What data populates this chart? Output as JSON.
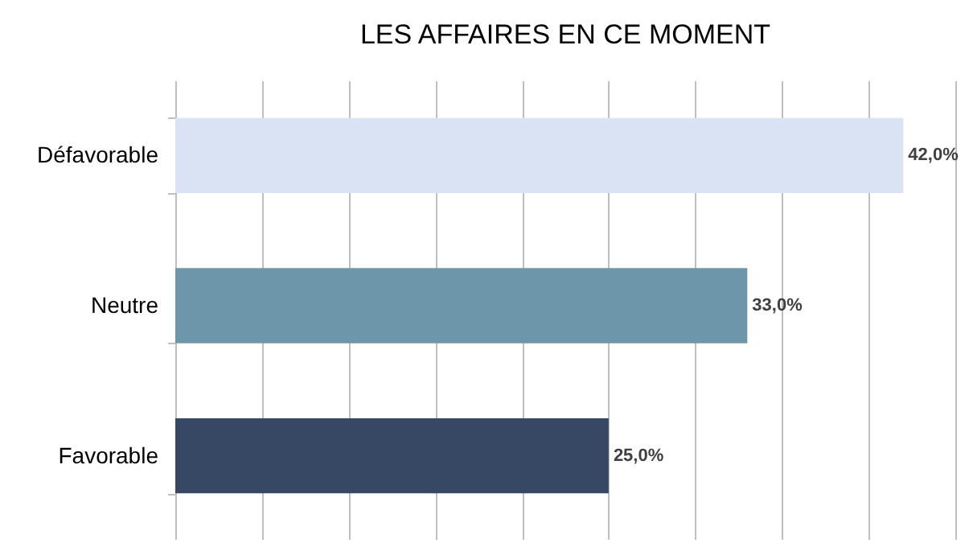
{
  "chart_data": {
    "type": "bar",
    "orientation": "horizontal",
    "title": "LES AFFAIRES EN CE MOMENT",
    "categories": [
      "Défavorable",
      "Neutre",
      "Favorable"
    ],
    "values": [
      42,
      33,
      25
    ],
    "colors": [
      "#dae3f3",
      "#6d96ab",
      "#374865"
    ],
    "value_labels": [
      "42,0%",
      "33,0%",
      "25,0%"
    ],
    "xlim": [
      0,
      45
    ],
    "xticks": [
      {
        "value": 0,
        "label": null
      },
      {
        "value": 5,
        "label": null
      },
      {
        "value": 10,
        "label": null
      },
      {
        "value": 15,
        "label": null
      },
      {
        "value": 20,
        "label": null
      },
      {
        "value": 25,
        "label": null
      },
      {
        "value": 30,
        "label": null
      },
      {
        "value": 35,
        "label": null
      },
      {
        "value": 40,
        "label": null
      },
      {
        "value": 45,
        "label": null
      }
    ],
    "grid": "x",
    "tick_labels": "y"
  }
}
